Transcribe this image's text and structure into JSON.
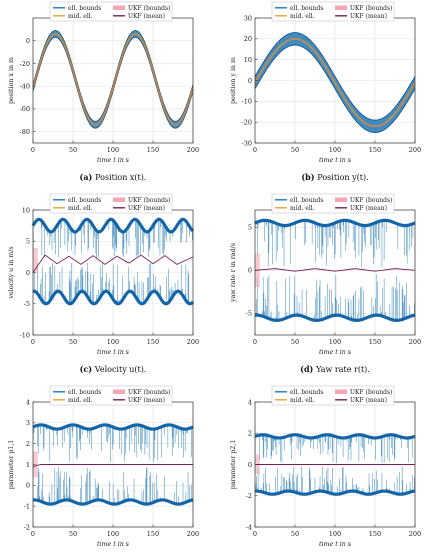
{
  "legend_entries": {
    "ell_bounds": "ell. bounds",
    "mid_ell": "mid. ell.",
    "ukf_bounds": "UKF (bounds)",
    "ukf_mean": "UKF (mean)"
  },
  "colors": {
    "ell_bounds": "#1f77b4",
    "mid_ell": "#e6a23c",
    "ukf_bounds": "#f4a6b4",
    "ukf_mean": "#7a1e58"
  },
  "chart_data": [
    {
      "id": "a",
      "type": "line",
      "caption_label": "(a)",
      "caption_text": "Position x(t).",
      "xlabel": "time t in s",
      "ylabel": "position x in m",
      "xlim": [
        0,
        200
      ],
      "ylim": [
        -90,
        20
      ],
      "xticks": [
        0,
        50,
        100,
        150,
        200
      ],
      "yticks": [
        -80,
        -60,
        -40,
        -20,
        0
      ],
      "grid": true,
      "legend_placement": "top",
      "signal": {
        "kind": "sine",
        "offset": -34,
        "amplitude": 40,
        "period": 100,
        "phase_max_at": 28,
        "band_half_width": 3
      },
      "series": [
        {
          "name": "ell. bounds",
          "x": [
            0,
            25,
            50,
            75,
            100,
            125,
            150,
            175,
            200
          ],
          "upper": [
            -29,
            9,
            -32,
            -71,
            -29,
            9,
            -32,
            -71,
            -37
          ],
          "lower": [
            -35,
            3,
            -38,
            -77,
            -35,
            3,
            -38,
            -77,
            -43
          ]
        },
        {
          "name": "mid. ell.",
          "x": [
            0,
            25,
            50,
            75,
            100,
            125,
            150,
            175,
            200
          ],
          "values": [
            -32,
            6,
            -35,
            -74,
            -32,
            6,
            -35,
            -74,
            -40
          ]
        },
        {
          "name": "UKF (mean)",
          "x": [
            0,
            25,
            50,
            75,
            100,
            125,
            150,
            175,
            200
          ],
          "values": [
            -32,
            6,
            -35,
            -74,
            -32,
            6,
            -35,
            -74,
            -40
          ]
        }
      ]
    },
    {
      "id": "b",
      "type": "line",
      "caption_label": "(b)",
      "caption_text": "Position y(t).",
      "xlabel": "time t in s",
      "ylabel": "position y in m",
      "xlim": [
        0,
        200
      ],
      "ylim": [
        -30,
        30
      ],
      "xticks": [
        0,
        50,
        100,
        150,
        200
      ],
      "yticks": [
        -30,
        -20,
        -10,
        0,
        10,
        20,
        30
      ],
      "grid": true,
      "legend_placement": "top",
      "signal": {
        "kind": "sine",
        "offset": -1,
        "amplitude": 21,
        "period": 200,
        "phase_max_at": 50,
        "band_half_width": 3
      },
      "series": [
        {
          "name": "ell. bounds",
          "x": [
            0,
            25,
            50,
            75,
            100,
            125,
            150,
            175,
            200
          ],
          "upper": [
            3,
            17,
            23,
            17,
            3,
            -13,
            -19,
            -13,
            3
          ],
          "lower": [
            -3,
            11,
            17,
            11,
            -3,
            -19,
            -25,
            -19,
            -3
          ]
        },
        {
          "name": "mid. ell.",
          "x": [
            0,
            25,
            50,
            75,
            100,
            125,
            150,
            175,
            200
          ],
          "values": [
            0,
            14,
            20,
            14,
            0,
            -16,
            -22,
            -16,
            0
          ]
        },
        {
          "name": "UKF (mean)",
          "x": [
            0,
            25,
            50,
            75,
            100,
            125,
            150,
            175,
            200
          ],
          "values": [
            0,
            14,
            20,
            14,
            0,
            -16,
            -22,
            -16,
            0
          ]
        }
      ]
    },
    {
      "id": "c",
      "type": "line",
      "caption_label": "(c)",
      "caption_text": "Velocity u(t).",
      "xlabel": "time t in s",
      "ylabel": "velocity u in m/s",
      "xlim": [
        0,
        200
      ],
      "ylim": [
        -10,
        10
      ],
      "xticks": [
        0,
        50,
        100,
        150,
        200
      ],
      "yticks": [
        -10,
        -5,
        0,
        5,
        10
      ],
      "grid": true,
      "legend_placement": "top",
      "signal": {
        "kind": "spiky_band",
        "upper_base": 7.5,
        "upper_amp": 1.0,
        "lower_base": -4.0,
        "lower_amp": 1.0,
        "period": 30,
        "mean_base": 2.0,
        "mean_amp": 0.8
      },
      "series": [
        {
          "name": "ell. bounds",
          "upper_level": 8,
          "lower_level": -4
        },
        {
          "name": "UKF (mean)",
          "x": [
            0,
            15,
            30,
            45,
            60,
            75,
            90,
            105,
            120,
            135,
            150,
            165,
            180,
            200
          ],
          "values": [
            0,
            2.8,
            1.4,
            2.6,
            1.3,
            2.7,
            1.3,
            2.6,
            1.5,
            2.8,
            1.4,
            2.7,
            1.3,
            2.5
          ]
        }
      ]
    },
    {
      "id": "d",
      "type": "line",
      "caption_label": "(d)",
      "caption_text": "Yaw rate r(t).",
      "xlabel": "time t in s",
      "ylabel": "yaw rate r in rad/s",
      "xlim": [
        0,
        200
      ],
      "ylim": [
        -7.5,
        7
      ],
      "xticks": [
        0,
        50,
        100,
        150,
        200
      ],
      "yticks": [
        -5,
        0,
        5
      ],
      "grid": true,
      "legend_placement": "top",
      "signal": {
        "kind": "spiky_band",
        "upper_base": 5.5,
        "upper_amp": 0.3,
        "lower_base": -5.5,
        "lower_amp": 0.3,
        "period": 50,
        "mean_base": 0.0,
        "mean_amp": 0.2
      },
      "series": [
        {
          "name": "ell. bounds",
          "upper_level": 5.5,
          "lower_level": -5.5
        },
        {
          "name": "UKF (mean)",
          "x": [
            0,
            25,
            50,
            75,
            100,
            125,
            150,
            175,
            200
          ],
          "values": [
            0,
            0.2,
            -0.1,
            0.2,
            -0.1,
            0.2,
            -0.1,
            0.2,
            0.0
          ]
        }
      ]
    },
    {
      "id": "e",
      "type": "line",
      "caption_label": "(e)",
      "caption_text": "Parameter p1,1.",
      "xlabel": "time t in s",
      "ylabel": "parameter p1,1",
      "xlim": [
        0,
        200
      ],
      "ylim": [
        -2,
        4
      ],
      "xticks": [
        0,
        50,
        100,
        150,
        200
      ],
      "yticks": [
        -2,
        -1,
        0,
        1,
        2,
        3,
        4
      ],
      "grid": true,
      "legend_placement": "top",
      "signal": {
        "kind": "spiky_band",
        "upper_base": 2.8,
        "upper_amp": 0.1,
        "lower_base": -0.8,
        "lower_amp": 0.1,
        "period": 40,
        "mean_base": 1.0,
        "mean_amp": 0.0
      },
      "series": [
        {
          "name": "ell. bounds",
          "upper_level": 2.8,
          "lower_level": -0.8
        },
        {
          "name": "UKF (mean)",
          "x": [
            0,
            10,
            50,
            100,
            150,
            200
          ],
          "values": [
            0.9,
            1.0,
            1.0,
            1.0,
            1.0,
            1.0
          ]
        }
      ]
    },
    {
      "id": "f",
      "type": "line",
      "caption_label": "(f)",
      "caption_text": "Parameter p2,1.",
      "xlabel": "time t in s",
      "ylabel": "parameter p2,1",
      "xlim": [
        0,
        200
      ],
      "ylim": [
        -4,
        4
      ],
      "xticks": [
        0,
        50,
        100,
        150,
        200
      ],
      "yticks": [
        -4,
        -2,
        0,
        2,
        4
      ],
      "grid": true,
      "legend_placement": "top",
      "signal": {
        "kind": "spiky_band",
        "upper_base": 1.8,
        "upper_amp": 0.1,
        "lower_base": -1.8,
        "lower_amp": 0.1,
        "period": 40,
        "mean_base": 0.0,
        "mean_amp": 0.0
      },
      "series": [
        {
          "name": "ell. bounds",
          "upper_level": 1.8,
          "lower_level": -1.8
        },
        {
          "name": "UKF (mean)",
          "x": [
            0,
            50,
            100,
            150,
            200
          ],
          "values": [
            0,
            0,
            0,
            0,
            0
          ]
        }
      ]
    }
  ]
}
